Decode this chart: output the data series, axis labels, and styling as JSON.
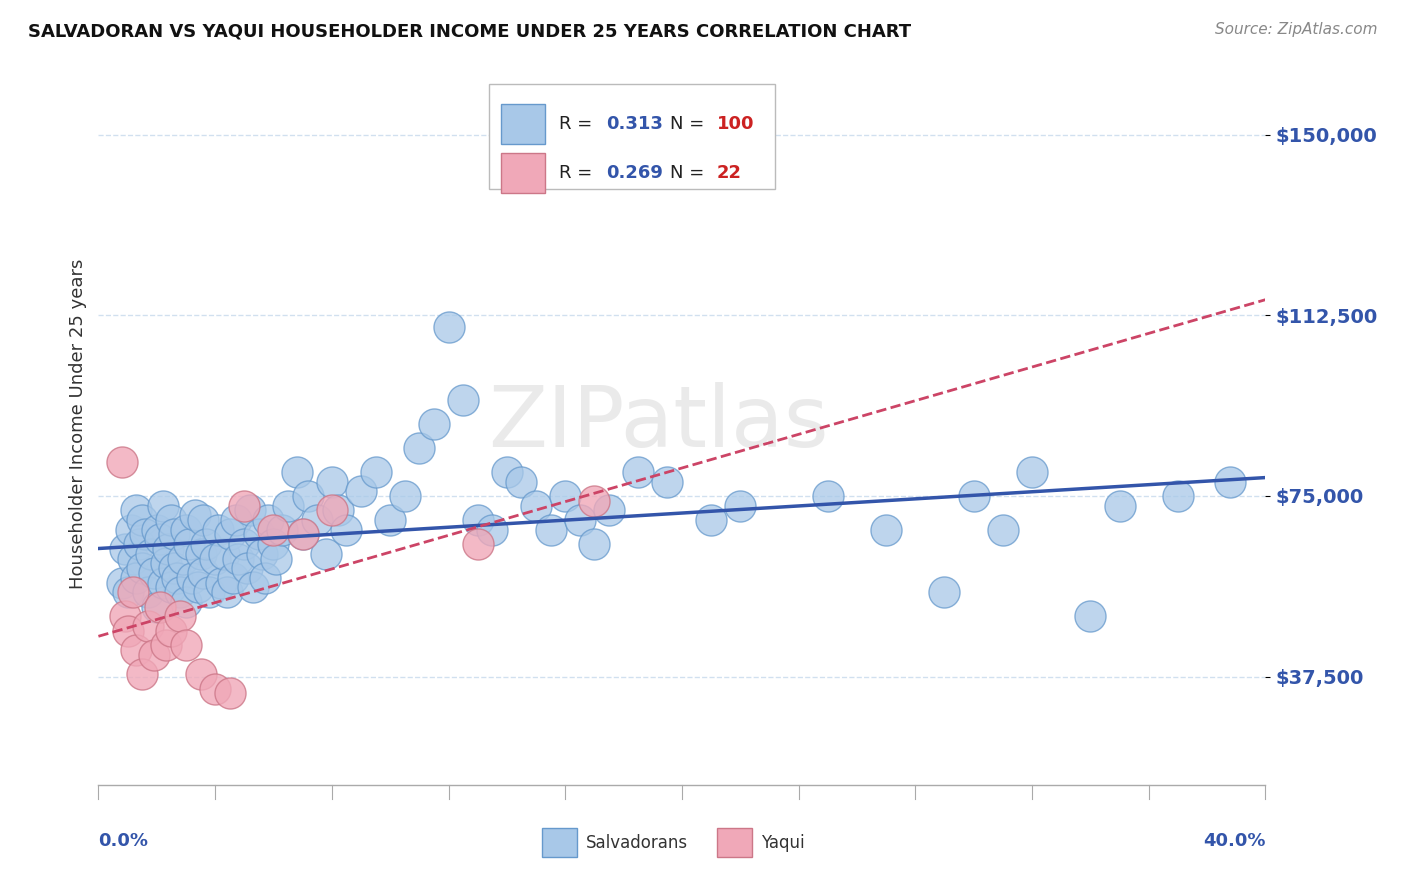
{
  "title": "SALVADORAN VS YAQUI HOUSEHOLDER INCOME UNDER 25 YEARS CORRELATION CHART",
  "source": "Source: ZipAtlas.com",
  "ylabel": "Householder Income Under 25 years",
  "y_ticks": [
    37500,
    75000,
    112500,
    150000
  ],
  "y_tick_labels": [
    "$37,500",
    "$75,000",
    "$112,500",
    "$150,000"
  ],
  "xlim": [
    0.0,
    0.4
  ],
  "ylim": [
    15000,
    165000
  ],
  "salvadoran_R": 0.313,
  "salvadoran_N": 100,
  "yaqui_R": 0.269,
  "yaqui_N": 22,
  "salvadoran_color": "#A8C8E8",
  "salvadoran_edge": "#6699CC",
  "yaqui_color": "#F0A8B8",
  "yaqui_edge": "#CC7788",
  "salvadoran_line_color": "#3355AA",
  "yaqui_line_color": "#CC4466",
  "watermark": "ZIPatlas",
  "bg_color": "#FFFFFF",
  "grid_color": "#CCDDEE",
  "watermark_color": "#DDDDDD",
  "r_label_color": "#000000",
  "n_value_color": "#3355AA",
  "n_count_color": "#CC2222",
  "title_color": "#111111",
  "source_color": "#888888",
  "tick_label_color": "#3355AA",
  "xlabel_color": "#3355AA",
  "salvadoran_x": [
    0.008,
    0.009,
    0.01,
    0.011,
    0.012,
    0.013,
    0.013,
    0.014,
    0.015,
    0.015,
    0.016,
    0.017,
    0.018,
    0.019,
    0.02,
    0.02,
    0.021,
    0.022,
    0.022,
    0.023,
    0.024,
    0.025,
    0.025,
    0.026,
    0.026,
    0.027,
    0.028,
    0.029,
    0.03,
    0.03,
    0.031,
    0.032,
    0.033,
    0.034,
    0.035,
    0.036,
    0.036,
    0.037,
    0.038,
    0.04,
    0.041,
    0.042,
    0.043,
    0.044,
    0.045,
    0.046,
    0.047,
    0.048,
    0.05,
    0.051,
    0.052,
    0.053,
    0.055,
    0.056,
    0.057,
    0.058,
    0.06,
    0.061,
    0.063,
    0.065,
    0.068,
    0.07,
    0.072,
    0.075,
    0.078,
    0.08,
    0.082,
    0.085,
    0.09,
    0.095,
    0.1,
    0.105,
    0.11,
    0.115,
    0.12,
    0.125,
    0.13,
    0.135,
    0.14,
    0.145,
    0.15,
    0.155,
    0.16,
    0.165,
    0.17,
    0.175,
    0.185,
    0.195,
    0.21,
    0.22,
    0.25,
    0.27,
    0.29,
    0.3,
    0.31,
    0.32,
    0.34,
    0.35,
    0.37,
    0.388
  ],
  "salvadoran_y": [
    57000,
    64000,
    55000,
    68000,
    62000,
    58000,
    72000,
    65000,
    60000,
    70000,
    67000,
    55000,
    63000,
    59000,
    68000,
    52000,
    66000,
    57000,
    73000,
    61000,
    64000,
    70000,
    56000,
    67000,
    60000,
    58000,
    55000,
    62000,
    68000,
    53000,
    65000,
    58000,
    71000,
    56000,
    63000,
    70000,
    59000,
    65000,
    55000,
    62000,
    68000,
    57000,
    63000,
    55000,
    67000,
    58000,
    70000,
    62000,
    65000,
    60000,
    72000,
    56000,
    67000,
    63000,
    58000,
    70000,
    65000,
    62000,
    68000,
    73000,
    80000,
    67000,
    75000,
    70000,
    63000,
    78000,
    72000,
    68000,
    76000,
    80000,
    70000,
    75000,
    85000,
    90000,
    110000,
    95000,
    70000,
    68000,
    80000,
    78000,
    73000,
    68000,
    75000,
    70000,
    65000,
    72000,
    80000,
    78000,
    70000,
    73000,
    75000,
    68000,
    55000,
    75000,
    68000,
    80000,
    50000,
    73000,
    75000,
    78000
  ],
  "yaqui_x": [
    0.008,
    0.009,
    0.01,
    0.012,
    0.013,
    0.015,
    0.017,
    0.019,
    0.021,
    0.023,
    0.025,
    0.028,
    0.03,
    0.035,
    0.04,
    0.045,
    0.05,
    0.06,
    0.07,
    0.08,
    0.13,
    0.17
  ],
  "yaqui_y": [
    82000,
    50000,
    47000,
    55000,
    43000,
    38000,
    48000,
    42000,
    52000,
    44000,
    47000,
    50000,
    44000,
    38000,
    35000,
    34000,
    73000,
    68000,
    67000,
    72000,
    65000,
    74000
  ]
}
